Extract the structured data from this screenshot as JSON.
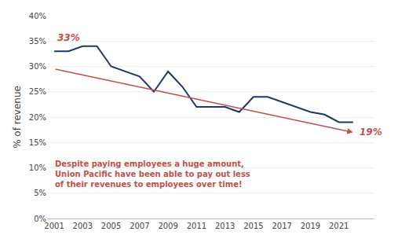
{
  "chart_data": {
    "type": "line",
    "x": [
      2001,
      2002,
      2003,
      2004,
      2005,
      2006,
      2007,
      2008,
      2009,
      2010,
      2011,
      2012,
      2013,
      2014,
      2015,
      2016,
      2017,
      2018,
      2019,
      2020,
      2021,
      2022
    ],
    "values": [
      33,
      33,
      34,
      34,
      30,
      29,
      28,
      25,
      29,
      26,
      22,
      22,
      22,
      21,
      24,
      24,
      23,
      22,
      21,
      20.5,
      19,
      19
    ],
    "color": "#1f3864",
    "trend": {
      "x": [
        2001,
        2022
      ],
      "values": [
        29.5,
        17.0
      ],
      "color": "#c0504d"
    },
    "annotations": [
      {
        "text": "33%",
        "color": "#c0504d"
      },
      {
        "text": "19%",
        "color": "#c0504d"
      },
      {
        "text": "Despite paying employees a huge amount,\nUnion Pacific have been able to pay out less\nof their revenues to employees over time!",
        "color": "#c0504d"
      }
    ],
    "ylabel": "% of revenue",
    "xlim": [
      2000.5,
      2023.5
    ],
    "xticks": [
      2001,
      2003,
      2005,
      2007,
      2009,
      2011,
      2013,
      2015,
      2017,
      2019,
      2021
    ],
    "ylim": [
      0,
      40
    ],
    "yticks": [
      {
        "value": 0,
        "label": "0%"
      },
      {
        "value": 5,
        "label": "5%"
      },
      {
        "value": 10,
        "label": "10%"
      },
      {
        "value": 15,
        "label": "15%"
      },
      {
        "value": 20,
        "label": "20%"
      },
      {
        "value": 25,
        "label": "25%"
      },
      {
        "value": 30,
        "label": "30%"
      },
      {
        "value": 35,
        "label": "35%"
      },
      {
        "value": 40,
        "label": "40%"
      }
    ],
    "grid": true
  }
}
